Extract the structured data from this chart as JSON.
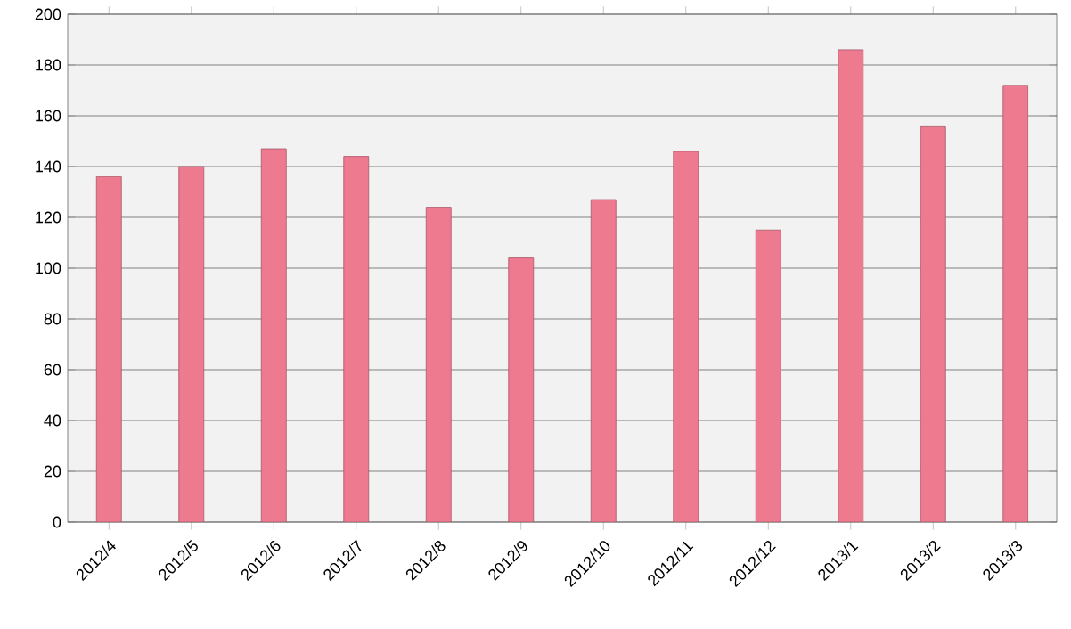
{
  "chart_data": {
    "type": "bar",
    "categories": [
      "2012/4",
      "2012/5",
      "2012/6",
      "2012/7",
      "2012/8",
      "2012/9",
      "2012/10",
      "2012/11",
      "2012/12",
      "2013/1",
      "2013/2",
      "2013/3"
    ],
    "values": [
      136,
      140,
      147,
      144,
      124,
      104,
      127,
      146,
      115,
      186,
      156,
      172
    ],
    "color": "#ee7a90",
    "ylim": [
      0,
      200
    ],
    "yticks": [
      0,
      20,
      40,
      60,
      80,
      100,
      120,
      140,
      160,
      180,
      200
    ],
    "grid": "y"
  }
}
